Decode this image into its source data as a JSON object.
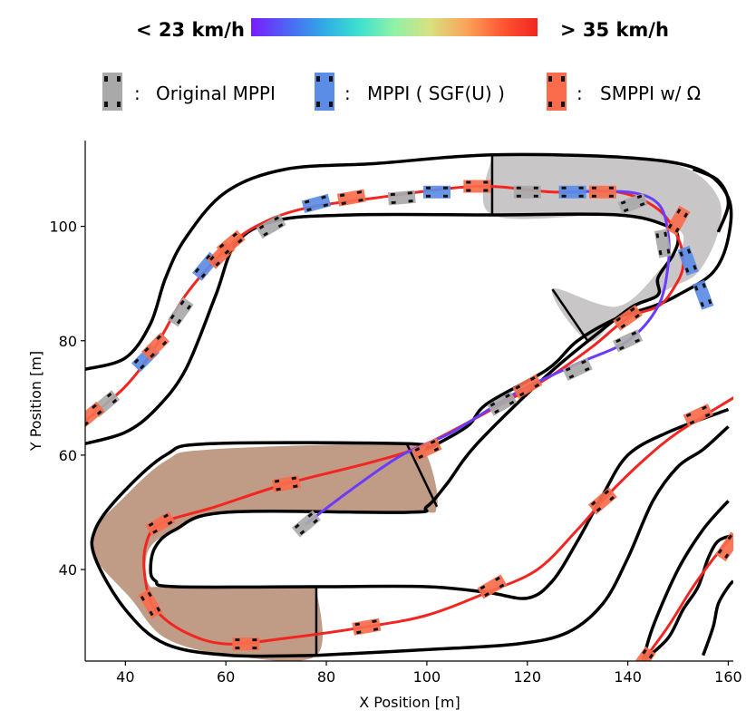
{
  "colorbar": {
    "low_label": "< 23 km/h",
    "high_label": "> 35 km/h",
    "colors": [
      "#7a1cff",
      "#4f63f4",
      "#2fa9e6",
      "#3be0cf",
      "#8ff2a8",
      "#d8e07f",
      "#f9a55a",
      "#ff5833",
      "#f22520"
    ]
  },
  "legend": [
    {
      "id": "original",
      "sep": ":",
      "label": "Original MPPI",
      "color": "#a9a9a9"
    },
    {
      "id": "sgf",
      "sep": ":",
      "label": "MPPI ( SGF(U) )",
      "color": "#5b8ce6"
    },
    {
      "id": "smppi",
      "sep": ":",
      "label": "SMPPI w/ Ω",
      "color": "#fa6c4c"
    }
  ],
  "chart_data": {
    "type": "line",
    "xlabel": "X Position [m]",
    "ylabel": "Y Position [m]",
    "xlim": [
      32,
      161
    ],
    "ylim": [
      24,
      115
    ],
    "xticks": [
      40,
      60,
      80,
      100,
      120,
      140,
      160
    ],
    "yticks": [
      40,
      60,
      80,
      100
    ],
    "regions": [
      {
        "name": "grey-region",
        "color": "#c8c6c6",
        "points": [
          [
            113,
            112.5
          ],
          [
            113,
            102
          ],
          [
            138,
            102
          ],
          [
            149,
            100
          ],
          [
            151,
            97
          ],
          [
            147,
            93
          ],
          [
            138,
            86
          ],
          [
            125,
            89
          ],
          [
            132,
            80
          ],
          [
            138,
            84
          ],
          [
            148,
            89
          ],
          [
            154,
            92
          ],
          [
            158,
            99
          ],
          [
            158,
            105
          ],
          [
            152,
            110
          ],
          [
            140,
            112
          ],
          [
            113,
            112.5
          ]
        ]
      },
      {
        "name": "brown-region",
        "color": "#c09b85",
        "points": [
          [
            78,
            37
          ],
          [
            78,
            25
          ],
          [
            61,
            25
          ],
          [
            48,
            28
          ],
          [
            41,
            35
          ],
          [
            34,
            42
          ],
          [
            34,
            47
          ],
          [
            39,
            52
          ],
          [
            48,
            59
          ],
          [
            57,
            61
          ],
          [
            96,
            62
          ],
          [
            100,
            60
          ],
          [
            102,
            51
          ],
          [
            96,
            50
          ],
          [
            60,
            50
          ],
          [
            50,
            47
          ],
          [
            45,
            44
          ],
          [
            44,
            40
          ],
          [
            45,
            37
          ],
          [
            48,
            37
          ],
          [
            78,
            37
          ]
        ]
      }
    ],
    "borders": [
      {
        "name": "outer-border-top",
        "points": [
          [
            32,
            75
          ],
          [
            40,
            77
          ],
          [
            45,
            83
          ],
          [
            48,
            91
          ],
          [
            52,
            98
          ],
          [
            60,
            106
          ],
          [
            72,
            110
          ],
          [
            90,
            111
          ],
          [
            113,
            112.5
          ],
          [
            140,
            112
          ],
          [
            154,
            110
          ],
          [
            160,
            105
          ],
          [
            160,
            98
          ],
          [
            157,
            92
          ],
          [
            150,
            88
          ],
          [
            145,
            86
          ],
          [
            138,
            84
          ],
          [
            130,
            80
          ],
          [
            124,
            75
          ],
          [
            112,
            69
          ],
          [
            108,
            65
          ],
          [
            100,
            61
          ]
        ]
      },
      {
        "name": "inner-border-upper",
        "points": [
          [
            32,
            62
          ],
          [
            40,
            64
          ],
          [
            46,
            68
          ],
          [
            52,
            75
          ],
          [
            58,
            88
          ],
          [
            62,
            97
          ],
          [
            70,
            101
          ],
          [
            85,
            102
          ],
          [
            113,
            102
          ],
          [
            138,
            102
          ],
          [
            148,
            100
          ],
          [
            150,
            98
          ],
          [
            149,
            95
          ],
          [
            146,
            91
          ],
          [
            146,
            88
          ],
          [
            141,
            86
          ],
          [
            135,
            82
          ],
          [
            124,
            74
          ],
          [
            110,
            62
          ],
          [
            104,
            55
          ],
          [
            100,
            51
          ],
          [
            96,
            50
          ],
          [
            60,
            50
          ],
          [
            50,
            47
          ],
          [
            46,
            44
          ],
          [
            45,
            40
          ],
          [
            46,
            38
          ],
          [
            50,
            37
          ],
          [
            78,
            37
          ],
          [
            100,
            37
          ],
          [
            112,
            36
          ],
          [
            120,
            35
          ],
          [
            125,
            38
          ],
          [
            130,
            45
          ],
          [
            135,
            53
          ],
          [
            140,
            60
          ],
          [
            148,
            64
          ],
          [
            160,
            68
          ]
        ]
      },
      {
        "name": "lower-border-1",
        "points": [
          [
            78,
            25
          ],
          [
            100,
            26
          ],
          [
            118,
            27
          ],
          [
            128,
            29
          ],
          [
            135,
            34
          ],
          [
            140,
            42
          ],
          [
            145,
            52
          ],
          [
            150,
            58
          ],
          [
            155,
            61
          ],
          [
            160,
            65
          ]
        ]
      },
      {
        "name": "lower-border-2",
        "points": [
          [
            143,
            24
          ],
          [
            148,
            28
          ],
          [
            151,
            33
          ],
          [
            154,
            37
          ],
          [
            156,
            42
          ],
          [
            158,
            45
          ],
          [
            161,
            46
          ]
        ]
      },
      {
        "name": "lower-border-3",
        "points": [
          [
            155,
            25
          ],
          [
            157,
            30
          ],
          [
            158,
            34
          ],
          [
            160,
            37
          ],
          [
            161,
            38
          ]
        ]
      },
      {
        "name": "lower-border-4",
        "points": [
          [
            143,
            24
          ],
          [
            145,
            30
          ],
          [
            150,
            40
          ],
          [
            155,
            47
          ],
          [
            160,
            52
          ]
        ]
      },
      {
        "name": "brown-outer-border",
        "points": [
          [
            100,
            61
          ],
          [
            96,
            62
          ],
          [
            57,
            62
          ],
          [
            48,
            60
          ],
          [
            39,
            53
          ],
          [
            34,
            47
          ],
          [
            34,
            42
          ],
          [
            40,
            33
          ],
          [
            48,
            27
          ],
          [
            61,
            25
          ],
          [
            78,
            25
          ]
        ]
      },
      {
        "name": "grey-outer-border",
        "points": [
          [
            158,
            99
          ],
          [
            160,
            104
          ],
          [
            158,
            108
          ],
          [
            153,
            110
          ]
        ]
      }
    ],
    "series": [
      {
        "name": "SMPPI path (upper)",
        "color": "#f22520",
        "points": [
          [
            32,
            66
          ],
          [
            40,
            72
          ],
          [
            46,
            79
          ],
          [
            52,
            88
          ],
          [
            60,
            96
          ],
          [
            66,
            100
          ],
          [
            75,
            103
          ],
          [
            90,
            105
          ],
          [
            110,
            107
          ],
          [
            125,
            106
          ],
          [
            138,
            106
          ],
          [
            146,
            103
          ],
          [
            150,
            98
          ],
          [
            151,
            93
          ],
          [
            149,
            89
          ],
          [
            146,
            86
          ],
          [
            140,
            84
          ],
          [
            133,
            79
          ],
          [
            125,
            74
          ],
          [
            115,
            69
          ],
          [
            100,
            62
          ],
          [
            90,
            59
          ],
          [
            72,
            55
          ],
          [
            58,
            51
          ],
          [
            47,
            48
          ],
          [
            44,
            44
          ],
          [
            44,
            38
          ],
          [
            46,
            33
          ],
          [
            52,
            29
          ],
          [
            60,
            27
          ],
          [
            72,
            28
          ],
          [
            88,
            30
          ],
          [
            100,
            32
          ],
          [
            112,
            36
          ],
          [
            122,
            40
          ],
          [
            130,
            47
          ],
          [
            136,
            53
          ],
          [
            143,
            59
          ],
          [
            150,
            64
          ],
          [
            161,
            70
          ]
        ]
      },
      {
        "name": "MPPI SGF path",
        "color": "#6a3cff",
        "points": [
          [
            76,
            48
          ],
          [
            85,
            54
          ],
          [
            95,
            60
          ],
          [
            105,
            64
          ],
          [
            118,
            71
          ],
          [
            130,
            76
          ],
          [
            140,
            80
          ],
          [
            146,
            86
          ],
          [
            148,
            93
          ],
          [
            148,
            99
          ],
          [
            146,
            104
          ],
          [
            140,
            106
          ],
          [
            128,
            106
          ]
        ]
      },
      {
        "name": "SMPPI path (lower)",
        "color": "#f22520",
        "points": [
          [
            143,
            24
          ],
          [
            148,
            30
          ],
          [
            153,
            37
          ],
          [
            158,
            43
          ],
          [
            161,
            46
          ]
        ]
      }
    ],
    "cars": [
      {
        "type": "original",
        "x": 36,
        "y": 69,
        "angle": 40
      },
      {
        "type": "smppi",
        "x": 33,
        "y": 67,
        "angle": 40
      },
      {
        "type": "sgf",
        "x": 44,
        "y": 77,
        "angle": 45
      },
      {
        "type": "smppi",
        "x": 46,
        "y": 79,
        "angle": 45
      },
      {
        "type": "original",
        "x": 51,
        "y": 85,
        "angle": 55
      },
      {
        "type": "sgf",
        "x": 56,
        "y": 93,
        "angle": 50
      },
      {
        "type": "smppi",
        "x": 59,
        "y": 95,
        "angle": 45
      },
      {
        "type": "smppi",
        "x": 61,
        "y": 97,
        "angle": 40
      },
      {
        "type": "original",
        "x": 69,
        "y": 100,
        "angle": 30
      },
      {
        "type": "sgf",
        "x": 78,
        "y": 104,
        "angle": 15
      },
      {
        "type": "smppi",
        "x": 85,
        "y": 105,
        "angle": 10
      },
      {
        "type": "original",
        "x": 95,
        "y": 105,
        "angle": 5
      },
      {
        "type": "sgf",
        "x": 102,
        "y": 106,
        "angle": 0
      },
      {
        "type": "smppi",
        "x": 110,
        "y": 107,
        "angle": 0
      },
      {
        "type": "original",
        "x": 120,
        "y": 106,
        "angle": 0
      },
      {
        "type": "sgf",
        "x": 129,
        "y": 106,
        "angle": 0
      },
      {
        "type": "smppi",
        "x": 135,
        "y": 106,
        "angle": 0
      },
      {
        "type": "original",
        "x": 141,
        "y": 104,
        "angle": 20
      },
      {
        "type": "smppi",
        "x": 150,
        "y": 101,
        "angle": 60
      },
      {
        "type": "sgf",
        "x": 152,
        "y": 94,
        "angle": 110
      },
      {
        "type": "sgf",
        "x": 155,
        "y": 88,
        "angle": 110
      },
      {
        "type": "original",
        "x": 147,
        "y": 97,
        "angle": 100
      },
      {
        "type": "smppi",
        "x": 140,
        "y": 84,
        "angle": 35
      },
      {
        "type": "original",
        "x": 140,
        "y": 80,
        "angle": 25
      },
      {
        "type": "original",
        "x": 130,
        "y": 75,
        "angle": 25
      },
      {
        "type": "smppi",
        "x": 120,
        "y": 72,
        "angle": 30
      },
      {
        "type": "original",
        "x": 115,
        "y": 69,
        "angle": 30
      },
      {
        "type": "smppi",
        "x": 100,
        "y": 61,
        "angle": 25
      },
      {
        "type": "smppi",
        "x": 72,
        "y": 55,
        "angle": 10
      },
      {
        "type": "original",
        "x": 76,
        "y": 48,
        "angle": 40
      },
      {
        "type": "smppi",
        "x": 47,
        "y": 48,
        "angle": 30
      },
      {
        "type": "smppi",
        "x": 45,
        "y": 34,
        "angle": 120
      },
      {
        "type": "smppi",
        "x": 64,
        "y": 27,
        "angle": 0
      },
      {
        "type": "smppi",
        "x": 88,
        "y": 30,
        "angle": 10
      },
      {
        "type": "smppi",
        "x": 113,
        "y": 37,
        "angle": 30
      },
      {
        "type": "smppi",
        "x": 135,
        "y": 52,
        "angle": 40
      },
      {
        "type": "smppi",
        "x": 154,
        "y": 67,
        "angle": 25
      },
      {
        "type": "smppi",
        "x": 160,
        "y": 44,
        "angle": 55
      },
      {
        "type": "smppi",
        "x": 143,
        "y": 24,
        "angle": 55
      }
    ]
  }
}
